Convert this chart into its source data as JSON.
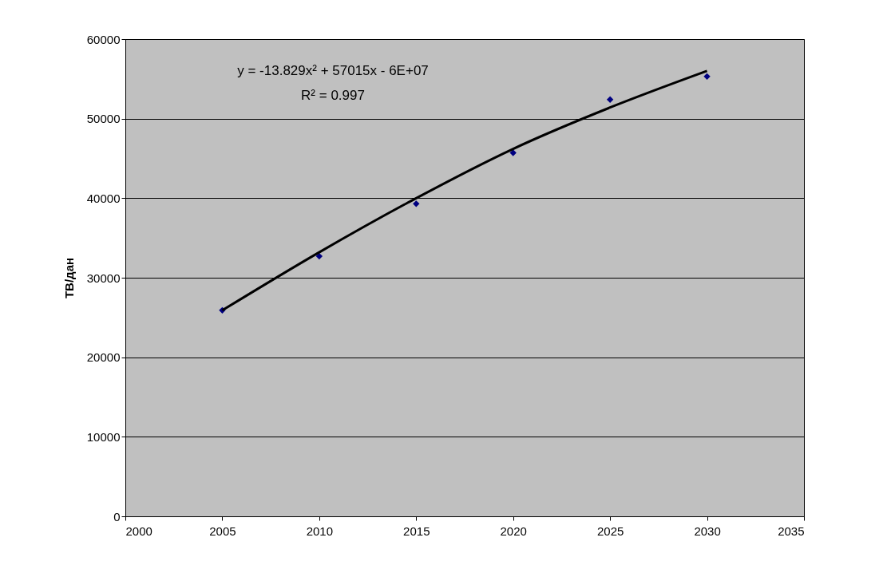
{
  "chart_data": {
    "type": "scatter",
    "ylabel": "ТВ/дан",
    "x": [
      2005,
      2010,
      2015,
      2020,
      2025,
      2030
    ],
    "series": [
      {
        "type": "scatter",
        "color": "#000080",
        "marker": "diamond",
        "values": [
          25900,
          32700,
          39300,
          45700,
          52400,
          55300
        ]
      },
      {
        "type": "line",
        "color": "#000000",
        "marker": "none",
        "line_style": "solid",
        "x": [
          2005,
          2010,
          2015,
          2020,
          2025,
          2030
        ],
        "values": [
          25900,
          33200,
          40000,
          46200,
          51400,
          56000
        ]
      }
    ],
    "annotations": [
      "y = -13.829x² + 57015x - 6E+07",
      "R² = 0.997"
    ],
    "xlim": [
      2000,
      2035
    ],
    "xticks": [
      2000,
      2005,
      2010,
      2015,
      2020,
      2025,
      2030,
      2035
    ],
    "ylim": [
      0,
      60000
    ],
    "yticks": [
      0,
      10000,
      20000,
      30000,
      40000,
      50000,
      60000
    ],
    "grid": "y"
  }
}
